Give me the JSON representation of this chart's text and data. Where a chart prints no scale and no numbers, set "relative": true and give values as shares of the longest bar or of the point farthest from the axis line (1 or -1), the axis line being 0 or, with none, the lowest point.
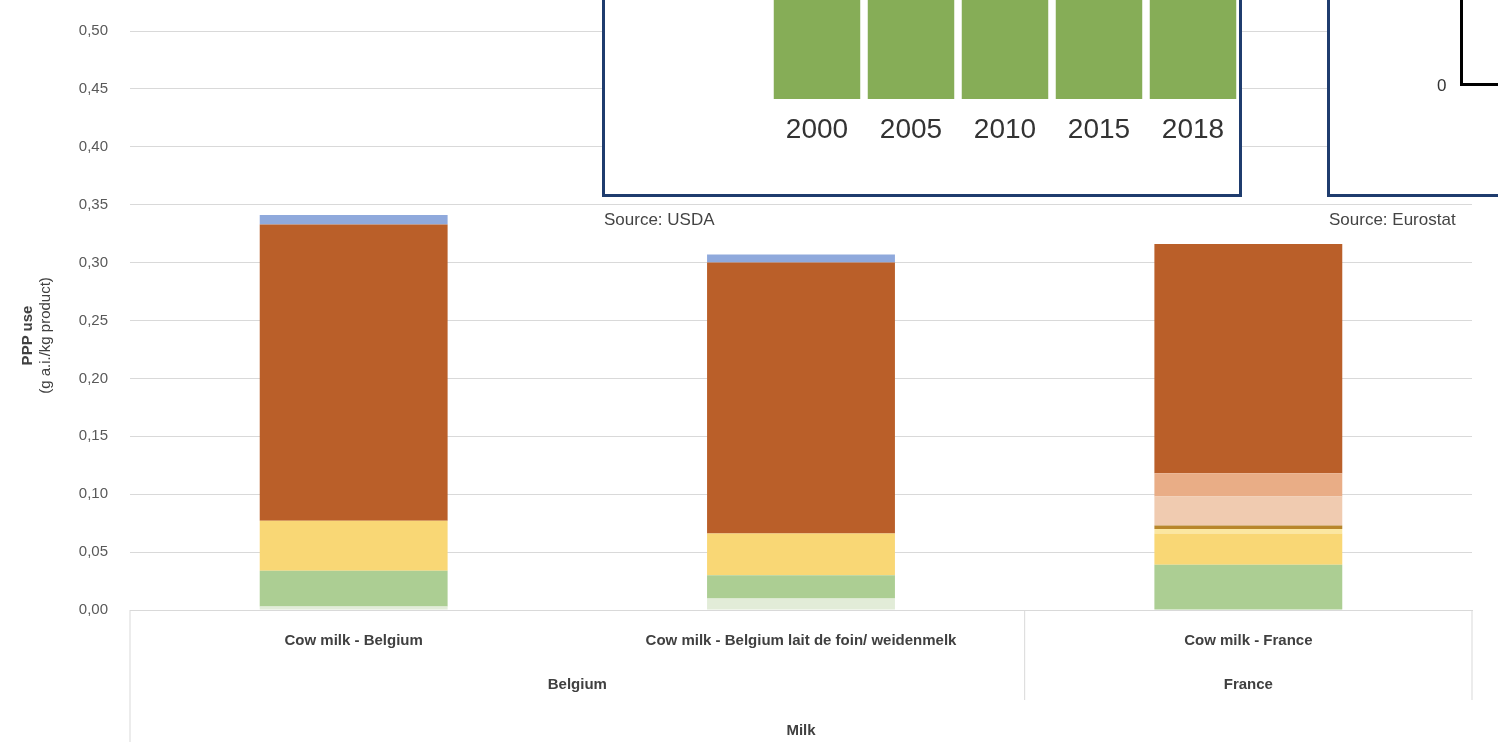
{
  "chart_data": [
    {
      "type": "bar",
      "stacked": true,
      "ylabel": "PPP use\n(g a.i./kg product)",
      "categories": [
        "Cow milk - Belgium",
        "Cow milk - Belgium lait de foin/ weidenmelk",
        "Cow milk - France"
      ],
      "series": [
        {
          "color": "#e2ecd8",
          "values": [
            0.003,
            0.01,
            null
          ]
        },
        {
          "color": "#acce93",
          "values": [
            0.031,
            0.02,
            0.039
          ]
        },
        {
          "color": "#f9d775",
          "values": [
            0.043,
            0.036,
            0.027
          ]
        },
        {
          "color": "#fbe7a1",
          "values": [
            null,
            null,
            0.004
          ]
        },
        {
          "color": "#b8862b",
          "values": [
            null,
            null,
            0.003
          ]
        },
        {
          "color": "#f0cbb0",
          "values": [
            null,
            null,
            0.025
          ]
        },
        {
          "color": "#e9ad86",
          "values": [
            null,
            null,
            0.02
          ]
        },
        {
          "color": "#ba5f29",
          "values": [
            0.256,
            0.234,
            0.198
          ]
        },
        {
          "color": "#8fa9dc",
          "values": [
            0.008,
            0.007,
            null
          ]
        }
      ],
      "ylim": [
        0,
        0.5
      ],
      "yticks": [
        {
          "value": 0,
          "label": "0,00"
        },
        {
          "value": 0.05,
          "label": "0,05"
        },
        {
          "value": 0.1,
          "label": "0,10"
        },
        {
          "value": 0.15,
          "label": "0,15"
        },
        {
          "value": 0.2,
          "label": "0,20"
        },
        {
          "value": 0.25,
          "label": "0,25"
        },
        {
          "value": 0.3,
          "label": "0,30"
        },
        {
          "value": 0.35,
          "label": "0,35"
        },
        {
          "value": 0.4,
          "label": "0,40"
        },
        {
          "value": 0.45,
          "label": "0,45"
        },
        {
          "value": 0.5,
          "label": "0,50"
        }
      ],
      "grid": "y",
      "annotations": [
        "Belgium",
        "France",
        "Milk"
      ]
    },
    {
      "type": "bar",
      "relative": true,
      "categories": [
        "2000",
        "2005",
        "2010",
        "2015",
        "2018"
      ],
      "values": [
        1,
        1,
        1,
        1,
        1
      ],
      "color": "#86ad57",
      "annotations": [
        "Source: USDA"
      ]
    },
    {
      "type": "other",
      "annotations": [
        "0",
        "Source: Eurostat"
      ]
    }
  ]
}
